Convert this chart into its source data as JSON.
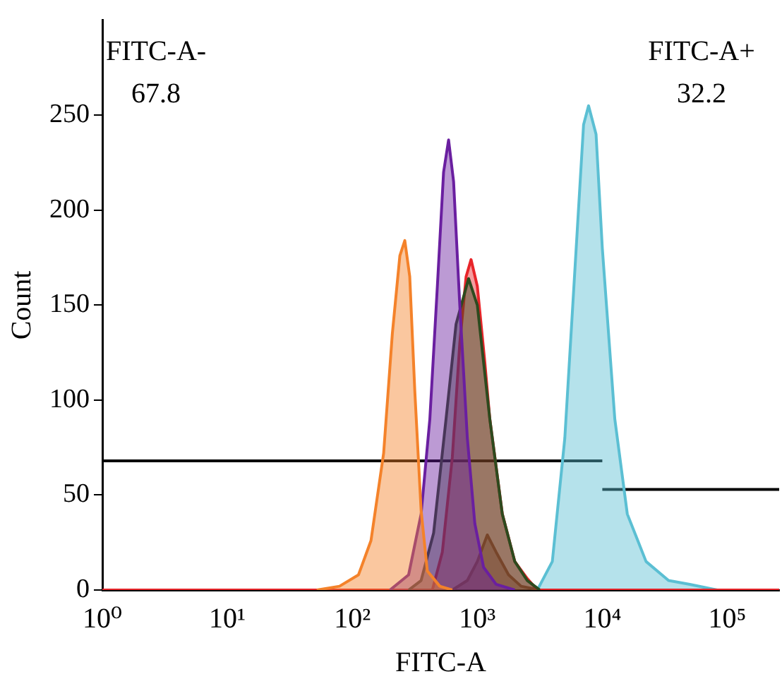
{
  "chart_data": {
    "type": "area",
    "xlabel": "FITC-A",
    "ylabel": "Count",
    "log": "x",
    "xlim": [
      1,
      260000
    ],
    "xticks": [
      {
        "value": 1,
        "label": "10⁰"
      },
      {
        "value": 10,
        "label": "10¹"
      },
      {
        "value": 100,
        "label": "10²"
      },
      {
        "value": 1000,
        "label": "10³"
      },
      {
        "value": 10000,
        "label": "10⁴"
      },
      {
        "value": 100000,
        "label": "10⁵"
      }
    ],
    "ylim": [
      0,
      300
    ],
    "yticks": [
      0,
      50,
      100,
      150,
      200,
      250
    ],
    "grid": false,
    "legend": false,
    "marker": "none",
    "annotations": [
      "FITC-A-\n67.8",
      "FITC-A+\n32.2"
    ],
    "series": [
      {
        "color": "#f4822a",
        "x": [
          52,
          79,
          112,
          141,
          178,
          209,
          240,
          263,
          288,
          316,
          355,
          398,
          501,
          631
        ],
        "values": [
          0,
          2,
          8,
          26,
          72,
          135,
          176,
          184,
          165,
          105,
          42,
          10,
          2,
          0
        ]
      },
      {
        "color": "#6a1fa0",
        "x": [
          200,
          282,
          355,
          417,
          479,
          537,
          589,
          646,
          724,
          832,
          955,
          1122,
          1413,
          1995
        ],
        "values": [
          0,
          8,
          40,
          90,
          160,
          220,
          237,
          215,
          150,
          80,
          35,
          12,
          3,
          0
        ]
      },
      {
        "color": "#2d4a1e",
        "x": [
          282,
          355,
          447,
          562,
          676,
          851,
          1000,
          1259,
          1585,
          1995,
          2512,
          3162
        ],
        "values": [
          0,
          5,
          30,
          90,
          140,
          164,
          150,
          90,
          40,
          15,
          5,
          0
        ]
      },
      {
        "color": "#e8252a",
        "x": [
          1,
          437,
          525,
          631,
          724,
          813,
          891,
          1000,
          1148,
          1259,
          1585,
          1995,
          2512,
          3020,
          260000
        ],
        "values": [
          0,
          0,
          20,
          70,
          130,
          165,
          174,
          160,
          120,
          90,
          40,
          15,
          6,
          0,
          0
        ]
      },
      {
        "color": "#8b5a3c",
        "x": [
          631,
          832,
          1000,
          1202,
          1413,
          1778,
          2239,
          3162
        ],
        "values": [
          0,
          5,
          15,
          29,
          20,
          8,
          2,
          0
        ]
      },
      {
        "color": "#5bbfd3",
        "x": [
          3020,
          3981,
          5012,
          6310,
          7079,
          7762,
          8913,
          10000,
          12589,
          15849,
          22387,
          33884,
          50119,
          83176
        ],
        "values": [
          0,
          15,
          80,
          190,
          245,
          255,
          240,
          180,
          90,
          40,
          15,
          5,
          3,
          0
        ]
      },
      {
        "type": "line",
        "color": "#000000",
        "x": [
          1,
          10000
        ],
        "values": [
          68,
          68
        ]
      },
      {
        "type": "line",
        "color": "#000000",
        "x": [
          10000,
          260000
        ],
        "values": [
          53,
          53
        ]
      }
    ]
  }
}
